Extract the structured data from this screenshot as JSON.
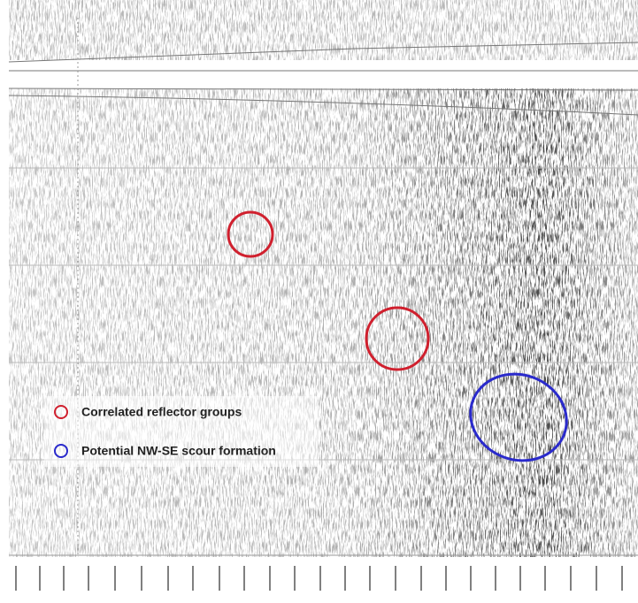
{
  "legend": {
    "items": [
      {
        "label": "Correlated reflector groups"
      },
      {
        "label": "Potential NW-SE scour formation"
      }
    ]
  }
}
